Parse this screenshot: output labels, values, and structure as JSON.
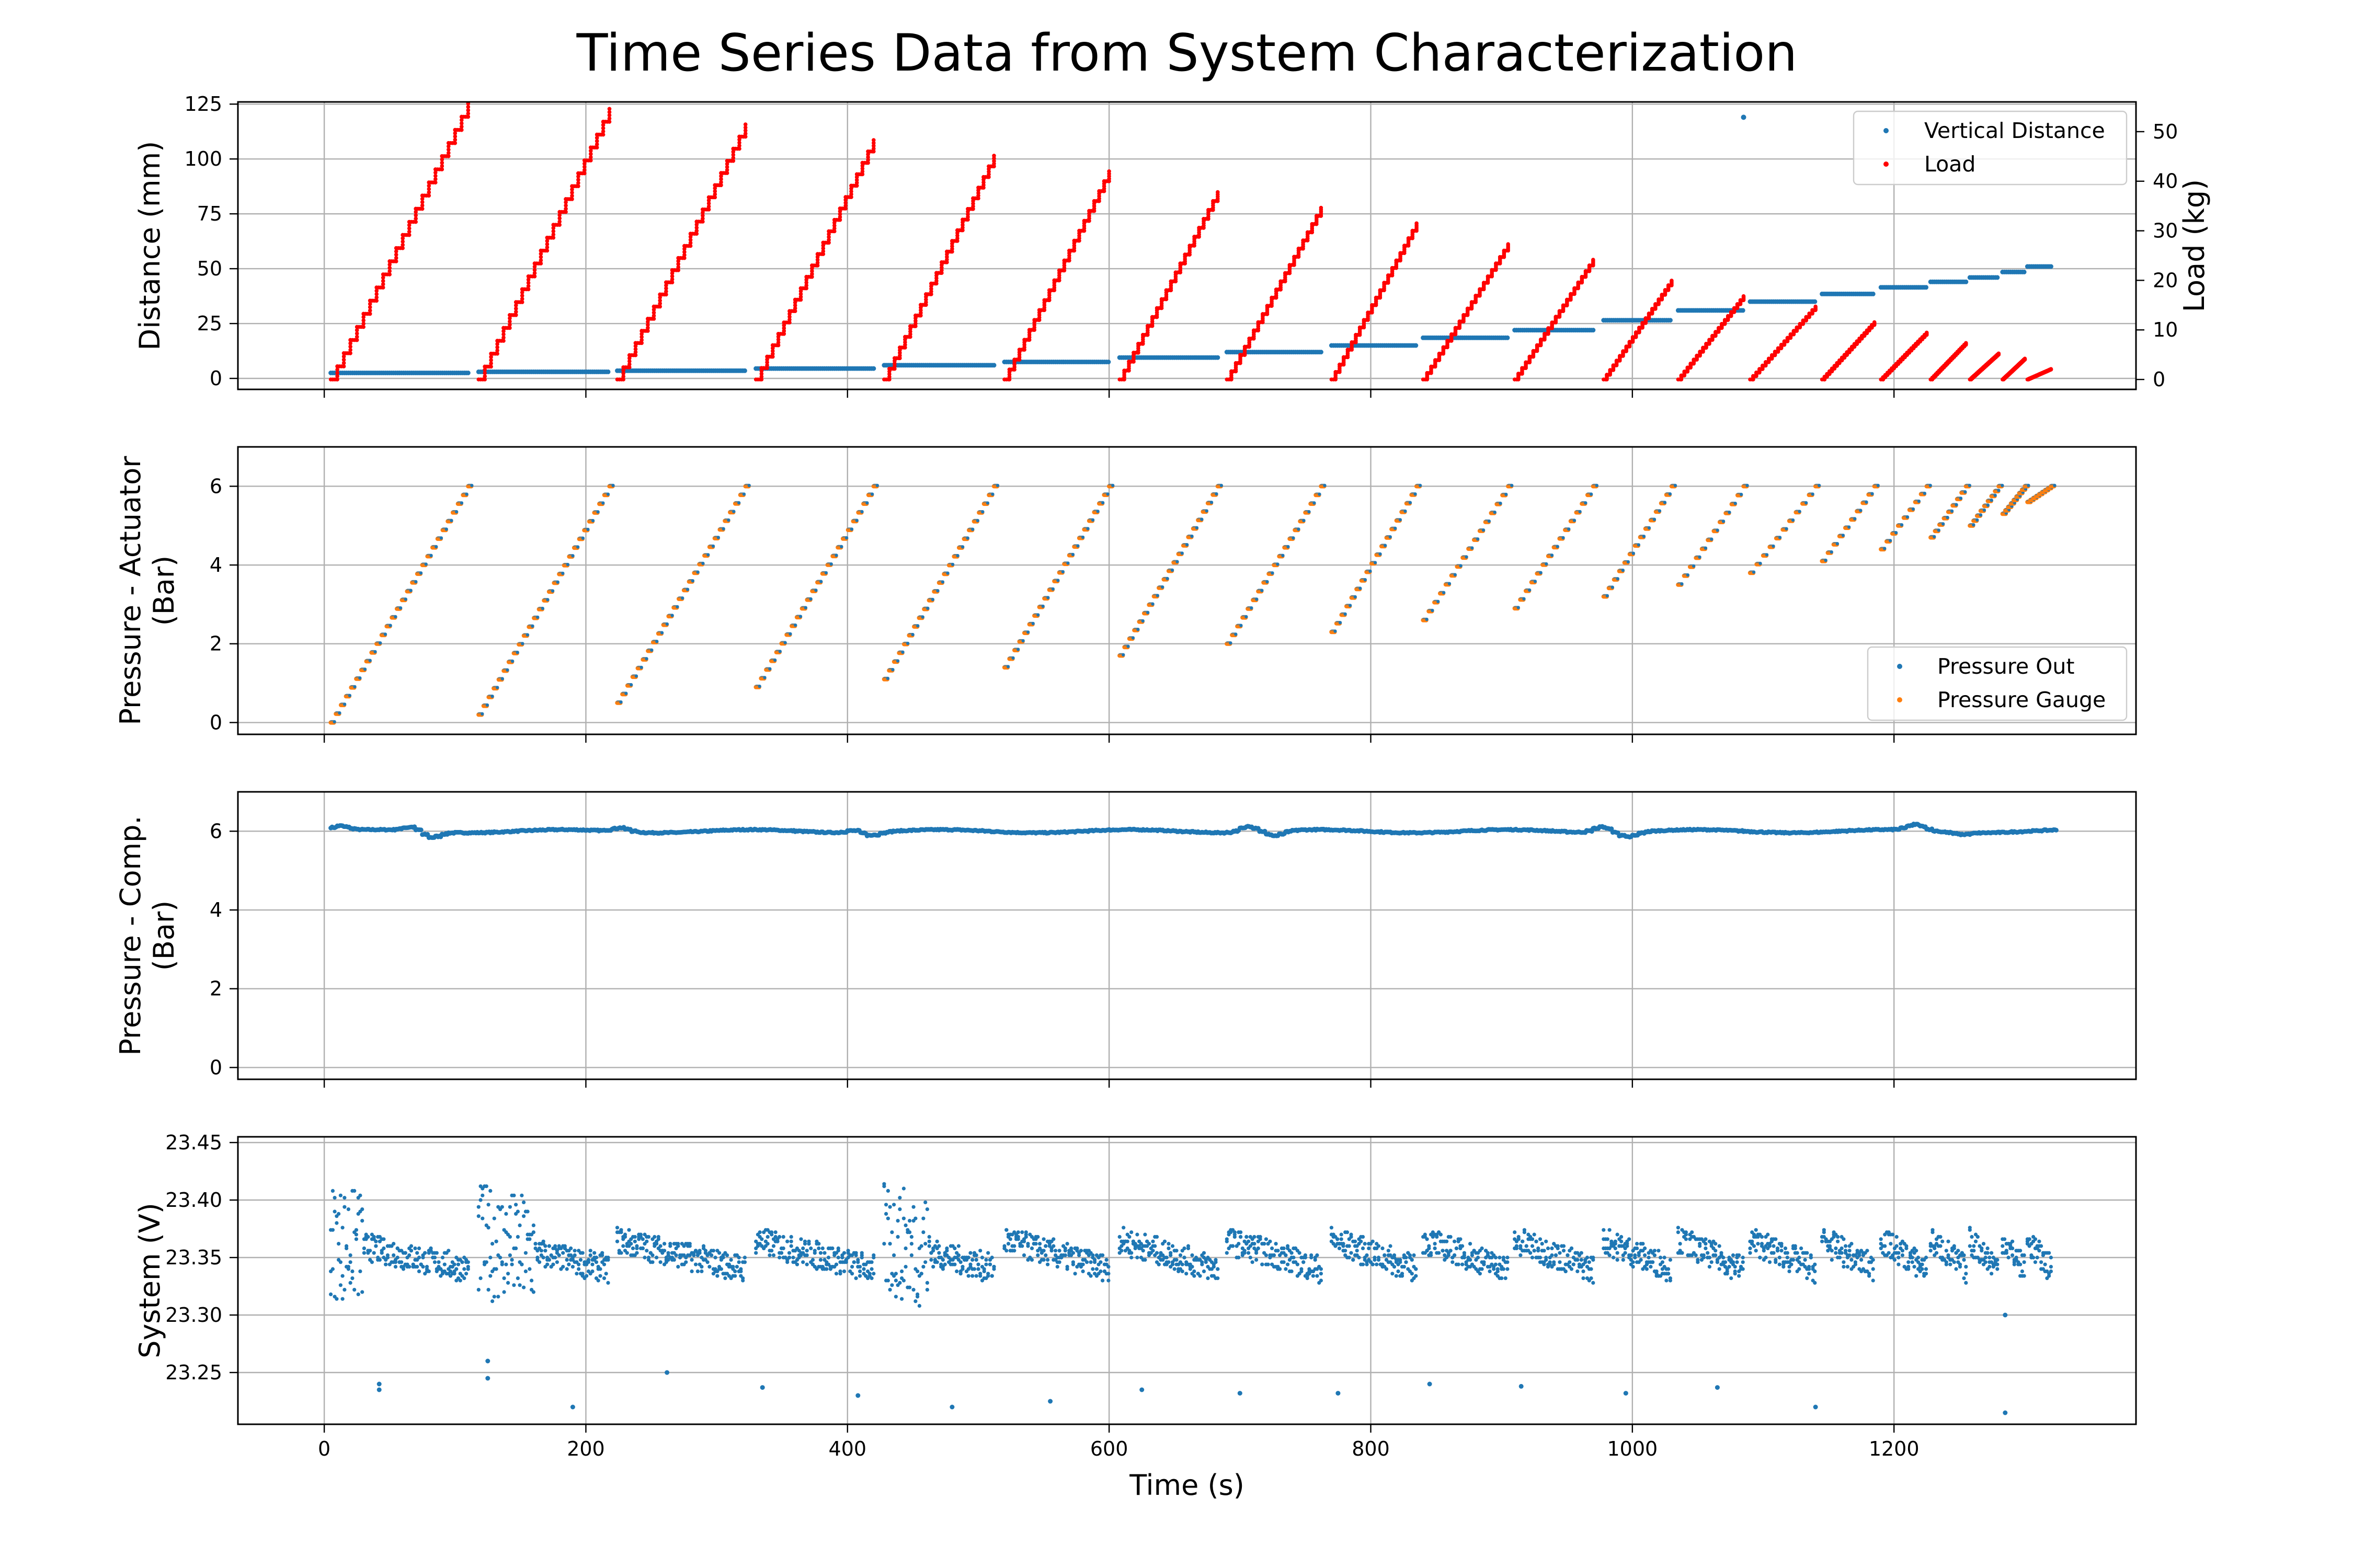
{
  "figure": {
    "title": "Time Series Data from System Characterization"
  },
  "chart_data": [
    {
      "type": "scatter",
      "ylabel": "Distance (mm)",
      "y2label": "Load (kg)",
      "xlim": [
        -66,
        1385
      ],
      "ylim": [
        -5,
        126
      ],
      "y2lim": [
        -2,
        56
      ],
      "yticks": [
        0,
        25,
        50,
        75,
        100,
        125
      ],
      "y2ticks": [
        0,
        10,
        20,
        30,
        40,
        50
      ],
      "grid": true,
      "legend": "top-right",
      "cycles": [
        {
          "start": 5,
          "end": 110,
          "dist": 2.5,
          "load_start": 0,
          "load_peak": 53
        },
        {
          "start": 118,
          "end": 218,
          "dist": 3,
          "load_start": 0,
          "load_peak": 52
        },
        {
          "start": 224,
          "end": 322,
          "dist": 3.5,
          "load_start": 0,
          "load_peak": 49
        },
        {
          "start": 330,
          "end": 420,
          "dist": 4.5,
          "load_start": 0,
          "load_peak": 46
        },
        {
          "start": 428,
          "end": 512,
          "dist": 6,
          "load_start": 0,
          "load_peak": 43
        },
        {
          "start": 520,
          "end": 600,
          "dist": 7.5,
          "load_start": 0,
          "load_peak": 40
        },
        {
          "start": 608,
          "end": 683,
          "dist": 9.5,
          "load_start": 0,
          "load_peak": 36
        },
        {
          "start": 690,
          "end": 762,
          "dist": 12,
          "load_start": 0,
          "load_peak": 33
        },
        {
          "start": 770,
          "end": 835,
          "dist": 15,
          "load_start": 0,
          "load_peak": 30
        },
        {
          "start": 840,
          "end": 905,
          "dist": 18.5,
          "load_start": 0,
          "load_peak": 26
        },
        {
          "start": 910,
          "end": 970,
          "dist": 22,
          "load_start": 0,
          "load_peak": 23
        },
        {
          "start": 978,
          "end": 1030,
          "dist": 26.5,
          "load_start": 0,
          "load_peak": 19
        },
        {
          "start": 1035,
          "end": 1085,
          "dist": 31,
          "load_start": 0,
          "load_peak": 16
        },
        {
          "start": 1090,
          "end": 1140,
          "dist": 35,
          "load_start": 0,
          "load_peak": 14
        },
        {
          "start": 1145,
          "end": 1185,
          "dist": 38.5,
          "load_start": 0,
          "load_peak": 11
        },
        {
          "start": 1190,
          "end": 1225,
          "dist": 41.5,
          "load_start": 0,
          "load_peak": 9
        },
        {
          "start": 1228,
          "end": 1255,
          "dist": 44,
          "load_start": 0,
          "load_peak": 7
        },
        {
          "start": 1258,
          "end": 1280,
          "dist": 46,
          "load_start": 0,
          "load_peak": 5
        },
        {
          "start": 1283,
          "end": 1300,
          "dist": 48.5,
          "load_start": 0,
          "load_peak": 4
        },
        {
          "start": 1302,
          "end": 1320,
          "dist": 51,
          "load_start": 0,
          "load_peak": 2
        }
      ],
      "outliers": [
        {
          "x": 1085,
          "y": 119
        }
      ],
      "series": [
        {
          "name": "Vertical Distance",
          "color": "#1f77b4",
          "axis": "left"
        },
        {
          "name": "Load",
          "color": "#ff0000",
          "axis": "right"
        }
      ]
    },
    {
      "type": "scatter",
      "ylabel": "Pressure - Actuator\n(Bar)",
      "xlim": [
        -66,
        1385
      ],
      "ylim": [
        -0.3,
        7
      ],
      "yticks": [
        0,
        2,
        4,
        6
      ],
      "grid": true,
      "legend": "bottom-right",
      "cycles": [
        {
          "start": 5,
          "end": 110,
          "p0": 0
        },
        {
          "start": 118,
          "end": 218,
          "p0": 0.2
        },
        {
          "start": 224,
          "end": 322,
          "p0": 0.5
        },
        {
          "start": 330,
          "end": 420,
          "p0": 0.9
        },
        {
          "start": 428,
          "end": 512,
          "p0": 1.1
        },
        {
          "start": 520,
          "end": 600,
          "p0": 1.4
        },
        {
          "start": 608,
          "end": 683,
          "p0": 1.7
        },
        {
          "start": 690,
          "end": 762,
          "p0": 2.0
        },
        {
          "start": 770,
          "end": 835,
          "p0": 2.3
        },
        {
          "start": 840,
          "end": 905,
          "p0": 2.6
        },
        {
          "start": 910,
          "end": 970,
          "p0": 2.9
        },
        {
          "start": 978,
          "end": 1030,
          "p0": 3.2
        },
        {
          "start": 1035,
          "end": 1085,
          "p0": 3.5
        },
        {
          "start": 1090,
          "end": 1140,
          "p0": 3.8
        },
        {
          "start": 1145,
          "end": 1185,
          "p0": 4.1
        },
        {
          "start": 1190,
          "end": 1225,
          "p0": 4.4
        },
        {
          "start": 1228,
          "end": 1255,
          "p0": 4.7
        },
        {
          "start": 1258,
          "end": 1280,
          "p0": 5.0
        },
        {
          "start": 1283,
          "end": 1300,
          "p0": 5.3
        },
        {
          "start": 1302,
          "end": 1320,
          "p0": 5.6
        }
      ],
      "p_max": 6,
      "series": [
        {
          "name": "Pressure Out",
          "color": "#1f77b4"
        },
        {
          "name": "Pressure Gauge",
          "color": "#ff7f0e"
        }
      ]
    },
    {
      "type": "scatter",
      "ylabel": "Pressure - Comp.\n(Bar)",
      "xlim": [
        -66,
        1385
      ],
      "ylim": [
        -0.3,
        7
      ],
      "yticks": [
        0,
        2,
        4,
        6
      ],
      "grid": true,
      "base": 6.0,
      "bumps": [
        {
          "x": 10,
          "y": 6.12
        },
        {
          "x": 65,
          "y": 6.1
        },
        {
          "x": 80,
          "y": 5.85
        },
        {
          "x": 225,
          "y": 6.1
        },
        {
          "x": 405,
          "y": 6.08
        },
        {
          "x": 415,
          "y": 5.9
        },
        {
          "x": 705,
          "y": 6.15
        },
        {
          "x": 725,
          "y": 5.88
        },
        {
          "x": 975,
          "y": 6.15
        },
        {
          "x": 995,
          "y": 5.88
        },
        {
          "x": 1215,
          "y": 6.15
        },
        {
          "x": 1250,
          "y": 5.95
        }
      ],
      "series": [
        {
          "name": "",
          "color": "#1f77b4"
        }
      ]
    },
    {
      "type": "scatter",
      "ylabel": "System (V)",
      "xlabel": "Time (s)",
      "xlim": [
        -66,
        1385
      ],
      "ylim": [
        23.205,
        23.455
      ],
      "yticks": [
        23.25,
        23.3,
        23.35,
        23.4,
        23.45
      ],
      "xticks": [
        0,
        200,
        400,
        600,
        800,
        1000,
        1200
      ],
      "grid": true,
      "baseline": 23.34,
      "noisy_windows": [
        [
          5,
          30
        ],
        [
          118,
          160
        ],
        [
          428,
          465
        ]
      ],
      "outliers": [
        {
          "x": 42,
          "y": 23.24
        },
        {
          "x": 42,
          "y": 23.235
        },
        {
          "x": 125,
          "y": 23.26
        },
        {
          "x": 125,
          "y": 23.245
        },
        {
          "x": 190,
          "y": 23.22
        },
        {
          "x": 262,
          "y": 23.25
        },
        {
          "x": 335,
          "y": 23.237
        },
        {
          "x": 408,
          "y": 23.23
        },
        {
          "x": 480,
          "y": 23.22
        },
        {
          "x": 555,
          "y": 23.225
        },
        {
          "x": 625,
          "y": 23.235
        },
        {
          "x": 700,
          "y": 23.232
        },
        {
          "x": 775,
          "y": 23.232
        },
        {
          "x": 845,
          "y": 23.24
        },
        {
          "x": 915,
          "y": 23.238
        },
        {
          "x": 995,
          "y": 23.232
        },
        {
          "x": 1065,
          "y": 23.237
        },
        {
          "x": 1140,
          "y": 23.22
        },
        {
          "x": 1285,
          "y": 23.215
        },
        {
          "x": 1285,
          "y": 23.3
        }
      ],
      "series": [
        {
          "name": "",
          "color": "#1f77b4"
        }
      ]
    }
  ]
}
